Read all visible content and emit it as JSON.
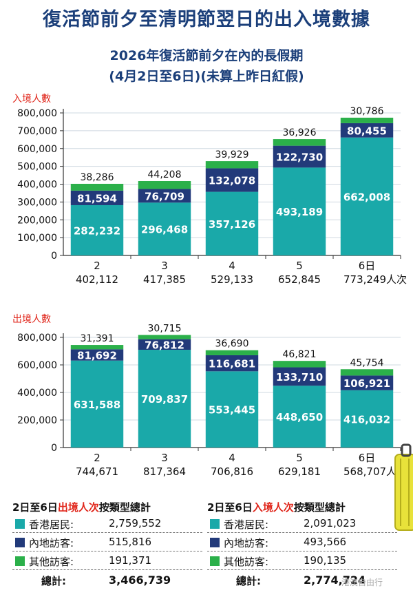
{
  "header": {
    "title": "復活節前夕至清明節翌日的出入境數據",
    "subtitle_line1": "2026年復活節前夕在內的長假期",
    "subtitle_line2": "(4月2日至6日)(未算上昨日紅假)"
  },
  "colors": {
    "hk_residents": "#1aa9a9",
    "mainland_visitors": "#223a7a",
    "other_visitors": "#2bb04a",
    "accent_red": "#e0261b",
    "title_blue": "#1b3f7a"
  },
  "chart_data": [
    {
      "type": "bar",
      "stacked": true,
      "title": "入境人數",
      "categories": [
        "2",
        "3",
        "4",
        "5",
        "6日"
      ],
      "totals": [
        "402,112",
        "417,385",
        "529,133",
        "652,845",
        "773,249"
      ],
      "total_unit": "人次",
      "ylim": [
        0,
        800000
      ],
      "yticks": [
        0,
        100000,
        200000,
        300000,
        400000,
        500000,
        600000,
        700000,
        800000
      ],
      "ytick_labels": [
        "0",
        "100,000",
        "200,000",
        "300,000",
        "400,000",
        "500,000",
        "600,000",
        "700,000",
        "800,000"
      ],
      "series": [
        {
          "name": "香港居民",
          "values": [
            282232,
            296468,
            357126,
            493189,
            662008
          ],
          "labels": [
            "282,232",
            "296,468",
            "357,126",
            "493,189",
            "662,008"
          ]
        },
        {
          "name": "內地訪客",
          "values": [
            81594,
            76709,
            132078,
            122730,
            80455
          ],
          "labels": [
            "81,594",
            "76,709",
            "132,078",
            "122,730",
            "80,455"
          ]
        },
        {
          "name": "其他訪客",
          "values": [
            38286,
            44208,
            39929,
            36926,
            30786
          ],
          "labels": [
            "38,286",
            "44,208",
            "39,929",
            "36,926",
            "30,786"
          ]
        }
      ]
    },
    {
      "type": "bar",
      "stacked": true,
      "title": "出境人數",
      "categories": [
        "2",
        "3",
        "4",
        "5",
        "6日"
      ],
      "totals": [
        "744,671",
        "817,364",
        "706,816",
        "629,181",
        "568,707"
      ],
      "total_unit": "人次",
      "ylim": [
        0,
        800000
      ],
      "yticks": [
        0,
        200000,
        400000,
        600000,
        800000
      ],
      "ytick_labels": [
        "0",
        "200,000",
        "400,000",
        "600,000",
        "800,000"
      ],
      "series": [
        {
          "name": "香港居民",
          "values": [
            631588,
            709837,
            553445,
            448650,
            416032
          ],
          "labels": [
            "631,588",
            "709,837",
            "553,445",
            "448,650",
            "416,032"
          ]
        },
        {
          "name": "內地訪客",
          "values": [
            81692,
            76812,
            116681,
            133710,
            106921
          ],
          "labels": [
            "81,692",
            "76,812",
            "116,681",
            "133,710",
            "106,921"
          ]
        },
        {
          "name": "其他訪客",
          "values": [
            31391,
            30715,
            36690,
            46821,
            45754
          ],
          "labels": [
            "31,391",
            "30,715",
            "36,690",
            "46,821",
            "45,754"
          ]
        }
      ]
    }
  ],
  "summary_out": {
    "title_prefix": "2日至6日",
    "title_highlight": "出境人次",
    "title_suffix": "按類型總計",
    "rows": [
      {
        "label": "香港居民:",
        "value": "2,759,552"
      },
      {
        "label": "內地訪客:",
        "value": "515,816"
      },
      {
        "label": "其他訪客:",
        "value": "191,371"
      }
    ],
    "total_label": "總計:",
    "total_value": "3,466,739"
  },
  "summary_in": {
    "title_prefix": "2日至6日",
    "title_highlight": "入境人次",
    "title_suffix": "按類型總計",
    "rows": [
      {
        "label": "香港居民:",
        "value": "2,091,023"
      },
      {
        "label": "內地訪客:",
        "value": "493,566"
      },
      {
        "label": "其他訪客:",
        "value": "190,135"
      }
    ],
    "total_label": "總計:",
    "total_value": "2,774,724"
  },
  "watermark": "港澳自由行"
}
